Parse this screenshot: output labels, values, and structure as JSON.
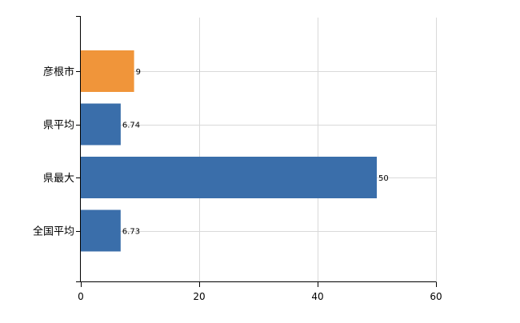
{
  "chart_data": {
    "type": "bar",
    "orientation": "horizontal",
    "title": "",
    "xlabel": "",
    "ylabel": "",
    "categories": [
      "彦根市",
      "県平均",
      "県最大",
      "全国平均"
    ],
    "values": [
      9,
      6.74,
      50,
      6.73
    ],
    "value_labels": [
      "9",
      "6.74",
      "50",
      "6.73"
    ],
    "bar_colors": [
      "#f0953a",
      "#3a6eaa",
      "#3a6eaa",
      "#3a6eaa"
    ],
    "xlim": [
      0,
      60
    ],
    "x_ticks": [
      0,
      20,
      40,
      60
    ],
    "x_tick_labels": [
      "0",
      "20",
      "40",
      "60"
    ],
    "grid": true,
    "legend": "none"
  }
}
